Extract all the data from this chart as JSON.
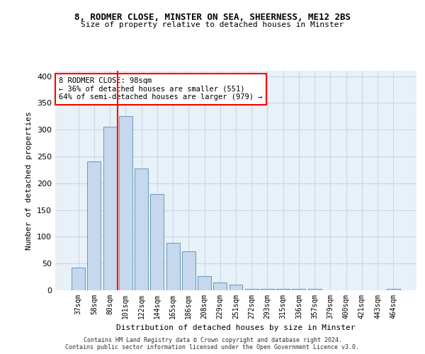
{
  "title1": "8, RODMER CLOSE, MINSTER ON SEA, SHEERNESS, ME12 2BS",
  "title2": "Size of property relative to detached houses in Minster",
  "xlabel": "Distribution of detached houses by size in Minster",
  "ylabel": "Number of detached properties",
  "categories": [
    "37sqm",
    "58sqm",
    "80sqm",
    "101sqm",
    "122sqm",
    "144sqm",
    "165sqm",
    "186sqm",
    "208sqm",
    "229sqm",
    "251sqm",
    "272sqm",
    "293sqm",
    "315sqm",
    "336sqm",
    "357sqm",
    "379sqm",
    "400sqm",
    "421sqm",
    "443sqm",
    "464sqm"
  ],
  "values": [
    42,
    241,
    305,
    325,
    228,
    180,
    89,
    73,
    26,
    15,
    10,
    3,
    3,
    3,
    3,
    3,
    0,
    0,
    0,
    0,
    3
  ],
  "bar_color": "#c5d8ed",
  "bar_edge_color": "#6699bb",
  "grid_color": "#c8d8e8",
  "background_color": "#e8f0f8",
  "vline_x": 2.5,
  "vline_color": "red",
  "annotation_text": "8 RODMER CLOSE: 98sqm\n← 36% of detached houses are smaller (551)\n64% of semi-detached houses are larger (979) →",
  "annotation_box_color": "white",
  "annotation_box_edge": "red",
  "ylim": [
    0,
    410
  ],
  "yticks": [
    0,
    50,
    100,
    150,
    200,
    250,
    300,
    350,
    400
  ],
  "footer1": "Contains HM Land Registry data © Crown copyright and database right 2024.",
  "footer2": "Contains public sector information licensed under the Open Government Licence v3.0."
}
